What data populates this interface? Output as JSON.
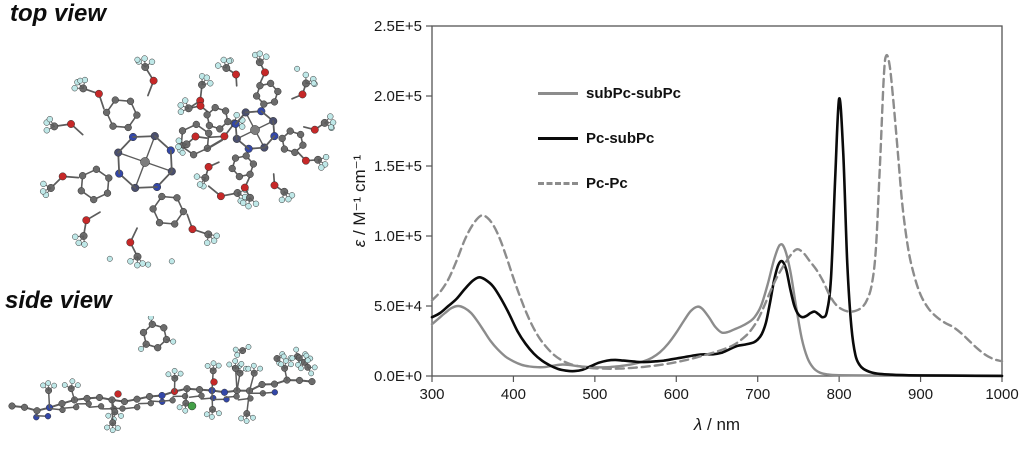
{
  "molecule_panel": {
    "top_view_label": "top view",
    "side_view_label": "side view"
  },
  "chart_data": {
    "type": "line",
    "title": "",
    "xlabel": "λ / nm",
    "ylabel": "ε / M⁻¹ cm⁻¹",
    "xlim": [
      300,
      1000
    ],
    "ylim": [
      0,
      250000
    ],
    "grid": false,
    "legend_position": "upper-left-inside",
    "x_ticks": [
      300,
      400,
      500,
      600,
      700,
      800,
      900,
      1000
    ],
    "x_tick_labels": [
      "300",
      "400",
      "500",
      "600",
      "700",
      "800",
      "900",
      "1000"
    ],
    "y_ticks": [
      0,
      50000,
      100000,
      150000,
      200000,
      250000
    ],
    "y_tick_labels": [
      "0.0E+0",
      "5.0E+4",
      "1.0E+5",
      "1.5E+5",
      "2.0E+5",
      "2.5E+5"
    ],
    "legend": [
      {
        "label": "subPc-subPc",
        "color": "#8c8c8c",
        "dash": "solid"
      },
      {
        "label": "Pc-subPc",
        "color": "#0a0a0a",
        "dash": "solid"
      },
      {
        "label": "Pc-Pc",
        "color": "#8c8c8c",
        "dash": "dashed"
      }
    ],
    "series": [
      {
        "name": "subPc-subPc",
        "color": "#8c8c8c",
        "dash": "solid",
        "width": 2.4,
        "points": [
          [
            300,
            37000
          ],
          [
            308,
            41000
          ],
          [
            316,
            45000
          ],
          [
            324,
            48500
          ],
          [
            332,
            50000
          ],
          [
            340,
            48500
          ],
          [
            348,
            45000
          ],
          [
            356,
            39000
          ],
          [
            364,
            32000
          ],
          [
            372,
            25000
          ],
          [
            380,
            19500
          ],
          [
            390,
            14000
          ],
          [
            400,
            10500
          ],
          [
            410,
            8000
          ],
          [
            420,
            6800
          ],
          [
            430,
            6300
          ],
          [
            440,
            6500
          ],
          [
            450,
            7500
          ],
          [
            460,
            8200
          ],
          [
            470,
            7800
          ],
          [
            480,
            7000
          ],
          [
            490,
            6500
          ],
          [
            500,
            6200
          ],
          [
            510,
            6200
          ],
          [
            520,
            6500
          ],
          [
            530,
            7000
          ],
          [
            540,
            7800
          ],
          [
            550,
            9000
          ],
          [
            560,
            10500
          ],
          [
            570,
            13000
          ],
          [
            580,
            17000
          ],
          [
            590,
            23000
          ],
          [
            600,
            31000
          ],
          [
            610,
            40000
          ],
          [
            618,
            46500
          ],
          [
            626,
            49500
          ],
          [
            632,
            48000
          ],
          [
            640,
            42000
          ],
          [
            648,
            35000
          ],
          [
            656,
            31000
          ],
          [
            664,
            31500
          ],
          [
            672,
            33500
          ],
          [
            680,
            35500
          ],
          [
            688,
            38000
          ],
          [
            696,
            42000
          ],
          [
            704,
            50000
          ],
          [
            712,
            65000
          ],
          [
            720,
            83000
          ],
          [
            727,
            93500
          ],
          [
            733,
            91000
          ],
          [
            740,
            75000
          ],
          [
            747,
            50000
          ],
          [
            754,
            27000
          ],
          [
            761,
            13000
          ],
          [
            768,
            6000
          ],
          [
            776,
            2500
          ],
          [
            785,
            1200
          ],
          [
            800,
            600
          ],
          [
            850,
            300
          ],
          [
            920,
            250
          ],
          [
            1000,
            200
          ]
        ]
      },
      {
        "name": "Pc-subPc",
        "color": "#0a0a0a",
        "dash": "solid",
        "width": 2.6,
        "points": [
          [
            300,
            42000
          ],
          [
            310,
            45000
          ],
          [
            320,
            50000
          ],
          [
            330,
            55000
          ],
          [
            340,
            62000
          ],
          [
            350,
            68000
          ],
          [
            358,
            70500
          ],
          [
            365,
            69000
          ],
          [
            375,
            64000
          ],
          [
            385,
            55000
          ],
          [
            395,
            44000
          ],
          [
            405,
            32000
          ],
          [
            415,
            23000
          ],
          [
            425,
            16000
          ],
          [
            435,
            11000
          ],
          [
            445,
            7500
          ],
          [
            455,
            5000
          ],
          [
            465,
            3800
          ],
          [
            475,
            3500
          ],
          [
            485,
            4500
          ],
          [
            495,
            7000
          ],
          [
            505,
            9500
          ],
          [
            515,
            11000
          ],
          [
            525,
            11500
          ],
          [
            535,
            11000
          ],
          [
            545,
            10500
          ],
          [
            555,
            10000
          ],
          [
            565,
            10000
          ],
          [
            575,
            10500
          ],
          [
            585,
            11000
          ],
          [
            595,
            12000
          ],
          [
            605,
            13000
          ],
          [
            615,
            14000
          ],
          [
            625,
            15000
          ],
          [
            635,
            15500
          ],
          [
            645,
            15500
          ],
          [
            655,
            16500
          ],
          [
            665,
            19000
          ],
          [
            675,
            21500
          ],
          [
            685,
            22500
          ],
          [
            695,
            24000
          ],
          [
            700,
            26000
          ],
          [
            705,
            30000
          ],
          [
            710,
            38000
          ],
          [
            715,
            52000
          ],
          [
            720,
            68000
          ],
          [
            725,
            79000
          ],
          [
            730,
            82000
          ],
          [
            735,
            76000
          ],
          [
            740,
            62000
          ],
          [
            745,
            50000
          ],
          [
            750,
            44000
          ],
          [
            755,
            42000
          ],
          [
            760,
            43000
          ],
          [
            765,
            45000
          ],
          [
            770,
            46000
          ],
          [
            775,
            44000
          ],
          [
            780,
            42000
          ],
          [
            785,
            46000
          ],
          [
            790,
            70000
          ],
          [
            795,
            140000
          ],
          [
            800,
            198000
          ],
          [
            805,
            160000
          ],
          [
            810,
            80000
          ],
          [
            815,
            35000
          ],
          [
            820,
            15000
          ],
          [
            825,
            8000
          ],
          [
            830,
            5000
          ],
          [
            840,
            2500
          ],
          [
            850,
            1500
          ],
          [
            870,
            800
          ],
          [
            900,
            400
          ],
          [
            950,
            200
          ],
          [
            1000,
            100
          ]
        ]
      },
      {
        "name": "Pc-Pc",
        "color": "#8c8c8c",
        "dash": "dashed",
        "width": 2.4,
        "points": [
          [
            300,
            54000
          ],
          [
            310,
            60000
          ],
          [
            320,
            69000
          ],
          [
            330,
            82000
          ],
          [
            340,
            97000
          ],
          [
            350,
            108000
          ],
          [
            360,
            114500
          ],
          [
            368,
            113000
          ],
          [
            376,
            107000
          ],
          [
            384,
            97000
          ],
          [
            392,
            84000
          ],
          [
            400,
            70000
          ],
          [
            408,
            57000
          ],
          [
            416,
            45000
          ],
          [
            424,
            35000
          ],
          [
            432,
            27000
          ],
          [
            440,
            21000
          ],
          [
            450,
            15000
          ],
          [
            460,
            11000
          ],
          [
            470,
            8500
          ],
          [
            480,
            7000
          ],
          [
            490,
            6000
          ],
          [
            500,
            5500
          ],
          [
            515,
            5200
          ],
          [
            530,
            5300
          ],
          [
            545,
            5800
          ],
          [
            560,
            6500
          ],
          [
            575,
            7500
          ],
          [
            590,
            8800
          ],
          [
            605,
            10500
          ],
          [
            620,
            12500
          ],
          [
            635,
            15000
          ],
          [
            650,
            17500
          ],
          [
            660,
            19500
          ],
          [
            670,
            22000
          ],
          [
            680,
            26000
          ],
          [
            690,
            31500
          ],
          [
            700,
            40000
          ],
          [
            708,
            50000
          ],
          [
            716,
            61000
          ],
          [
            724,
            71000
          ],
          [
            732,
            79000
          ],
          [
            740,
            86000
          ],
          [
            748,
            90500
          ],
          [
            756,
            88000
          ],
          [
            764,
            82000
          ],
          [
            772,
            76000
          ],
          [
            780,
            68000
          ],
          [
            788,
            58000
          ],
          [
            796,
            51000
          ],
          [
            804,
            47500
          ],
          [
            812,
            46000
          ],
          [
            820,
            46500
          ],
          [
            828,
            49000
          ],
          [
            834,
            54000
          ],
          [
            840,
            65000
          ],
          [
            845,
            90000
          ],
          [
            850,
            150000
          ],
          [
            855,
            215000
          ],
          [
            858,
            229000
          ],
          [
            862,
            222000
          ],
          [
            866,
            200000
          ],
          [
            872,
            160000
          ],
          [
            878,
            120000
          ],
          [
            885,
            90000
          ],
          [
            892,
            72000
          ],
          [
            900,
            58000
          ],
          [
            910,
            48000
          ],
          [
            920,
            42000
          ],
          [
            930,
            38000
          ],
          [
            940,
            35000
          ],
          [
            950,
            30500
          ],
          [
            960,
            25000
          ],
          [
            970,
            19500
          ],
          [
            980,
            15000
          ],
          [
            990,
            12000
          ],
          [
            1000,
            10500
          ]
        ]
      }
    ]
  }
}
